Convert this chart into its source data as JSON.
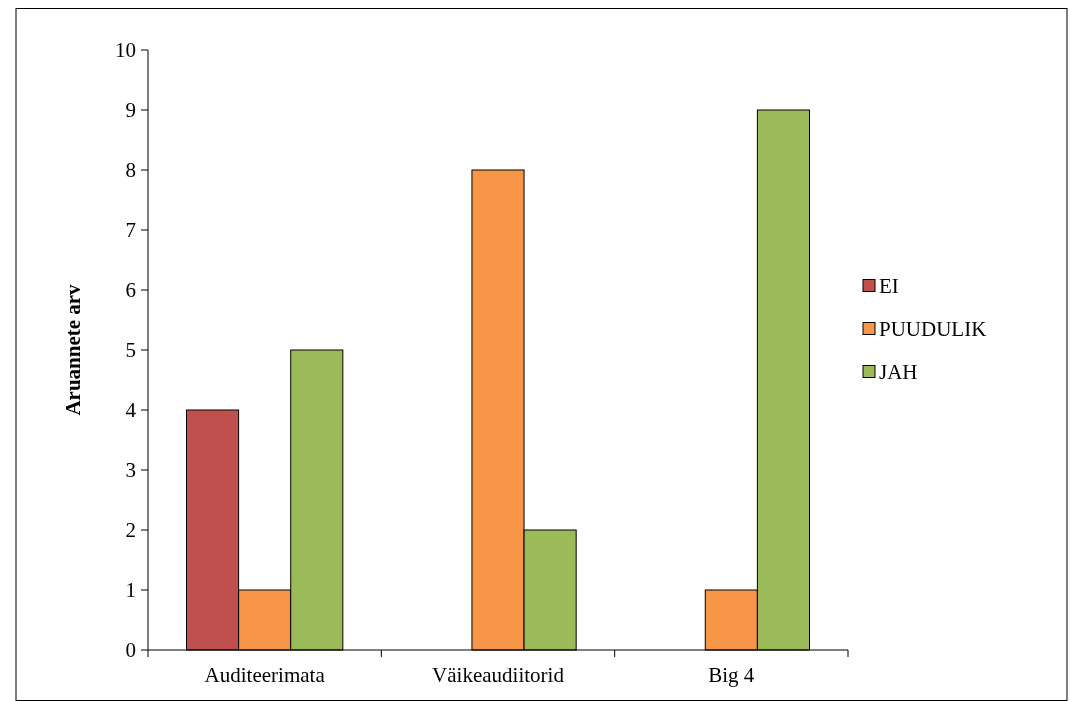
{
  "chart_data": {
    "type": "bar",
    "ylabel": "Aruannete arv",
    "categories": [
      "Auditeerimata",
      "Väikeaudiitorid",
      "Big 4"
    ],
    "series": [
      {
        "name": "EI",
        "color": "#c0504d",
        "values": [
          4,
          0,
          0
        ]
      },
      {
        "name": "PUUDULIK",
        "color": "#f79646",
        "values": [
          1,
          8,
          1
        ]
      },
      {
        "name": "JAH",
        "color": "#9bbb59",
        "values": [
          5,
          2,
          9
        ]
      }
    ],
    "ylim": [
      0,
      10
    ],
    "yticks": [
      0,
      1,
      2,
      3,
      4,
      5,
      6,
      7,
      8,
      9,
      10
    ],
    "grid": false,
    "legend": "right"
  }
}
